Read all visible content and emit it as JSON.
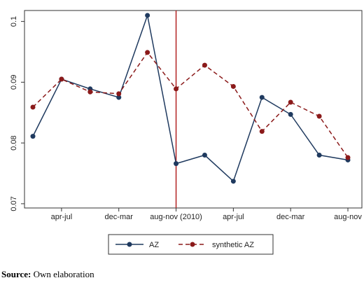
{
  "chart_data": {
    "type": "line",
    "categories": [
      null,
      "apr-jul",
      null,
      "dec-mar",
      null,
      "aug-nov (2010)",
      null,
      "apr-jul",
      null,
      "dec-mar",
      null,
      "aug-nov"
    ],
    "series": [
      {
        "name": "AZ",
        "color": "#1f3a5f",
        "dash": false,
        "values": [
          0.0811,
          0.0905,
          0.0889,
          0.0875,
          0.101,
          0.0766,
          0.078,
          0.0737,
          0.0875,
          0.0847,
          0.078,
          0.0772
        ]
      },
      {
        "name": "synthetic AZ",
        "color": "#8b1a1a",
        "dash": true,
        "values": [
          0.0859,
          0.0905,
          0.0884,
          0.0881,
          0.0949,
          0.0889,
          0.0928,
          0.0893,
          0.0819,
          0.0867,
          0.0844,
          0.0776
        ]
      }
    ],
    "ylim": [
      0.0693,
      0.1018
    ],
    "yticks": [
      0.07,
      0.08,
      0.09,
      0.1
    ],
    "vline_index": 5,
    "vline_color": "#b22222",
    "source_label": "Source:",
    "source_text": "Own elaboration"
  }
}
